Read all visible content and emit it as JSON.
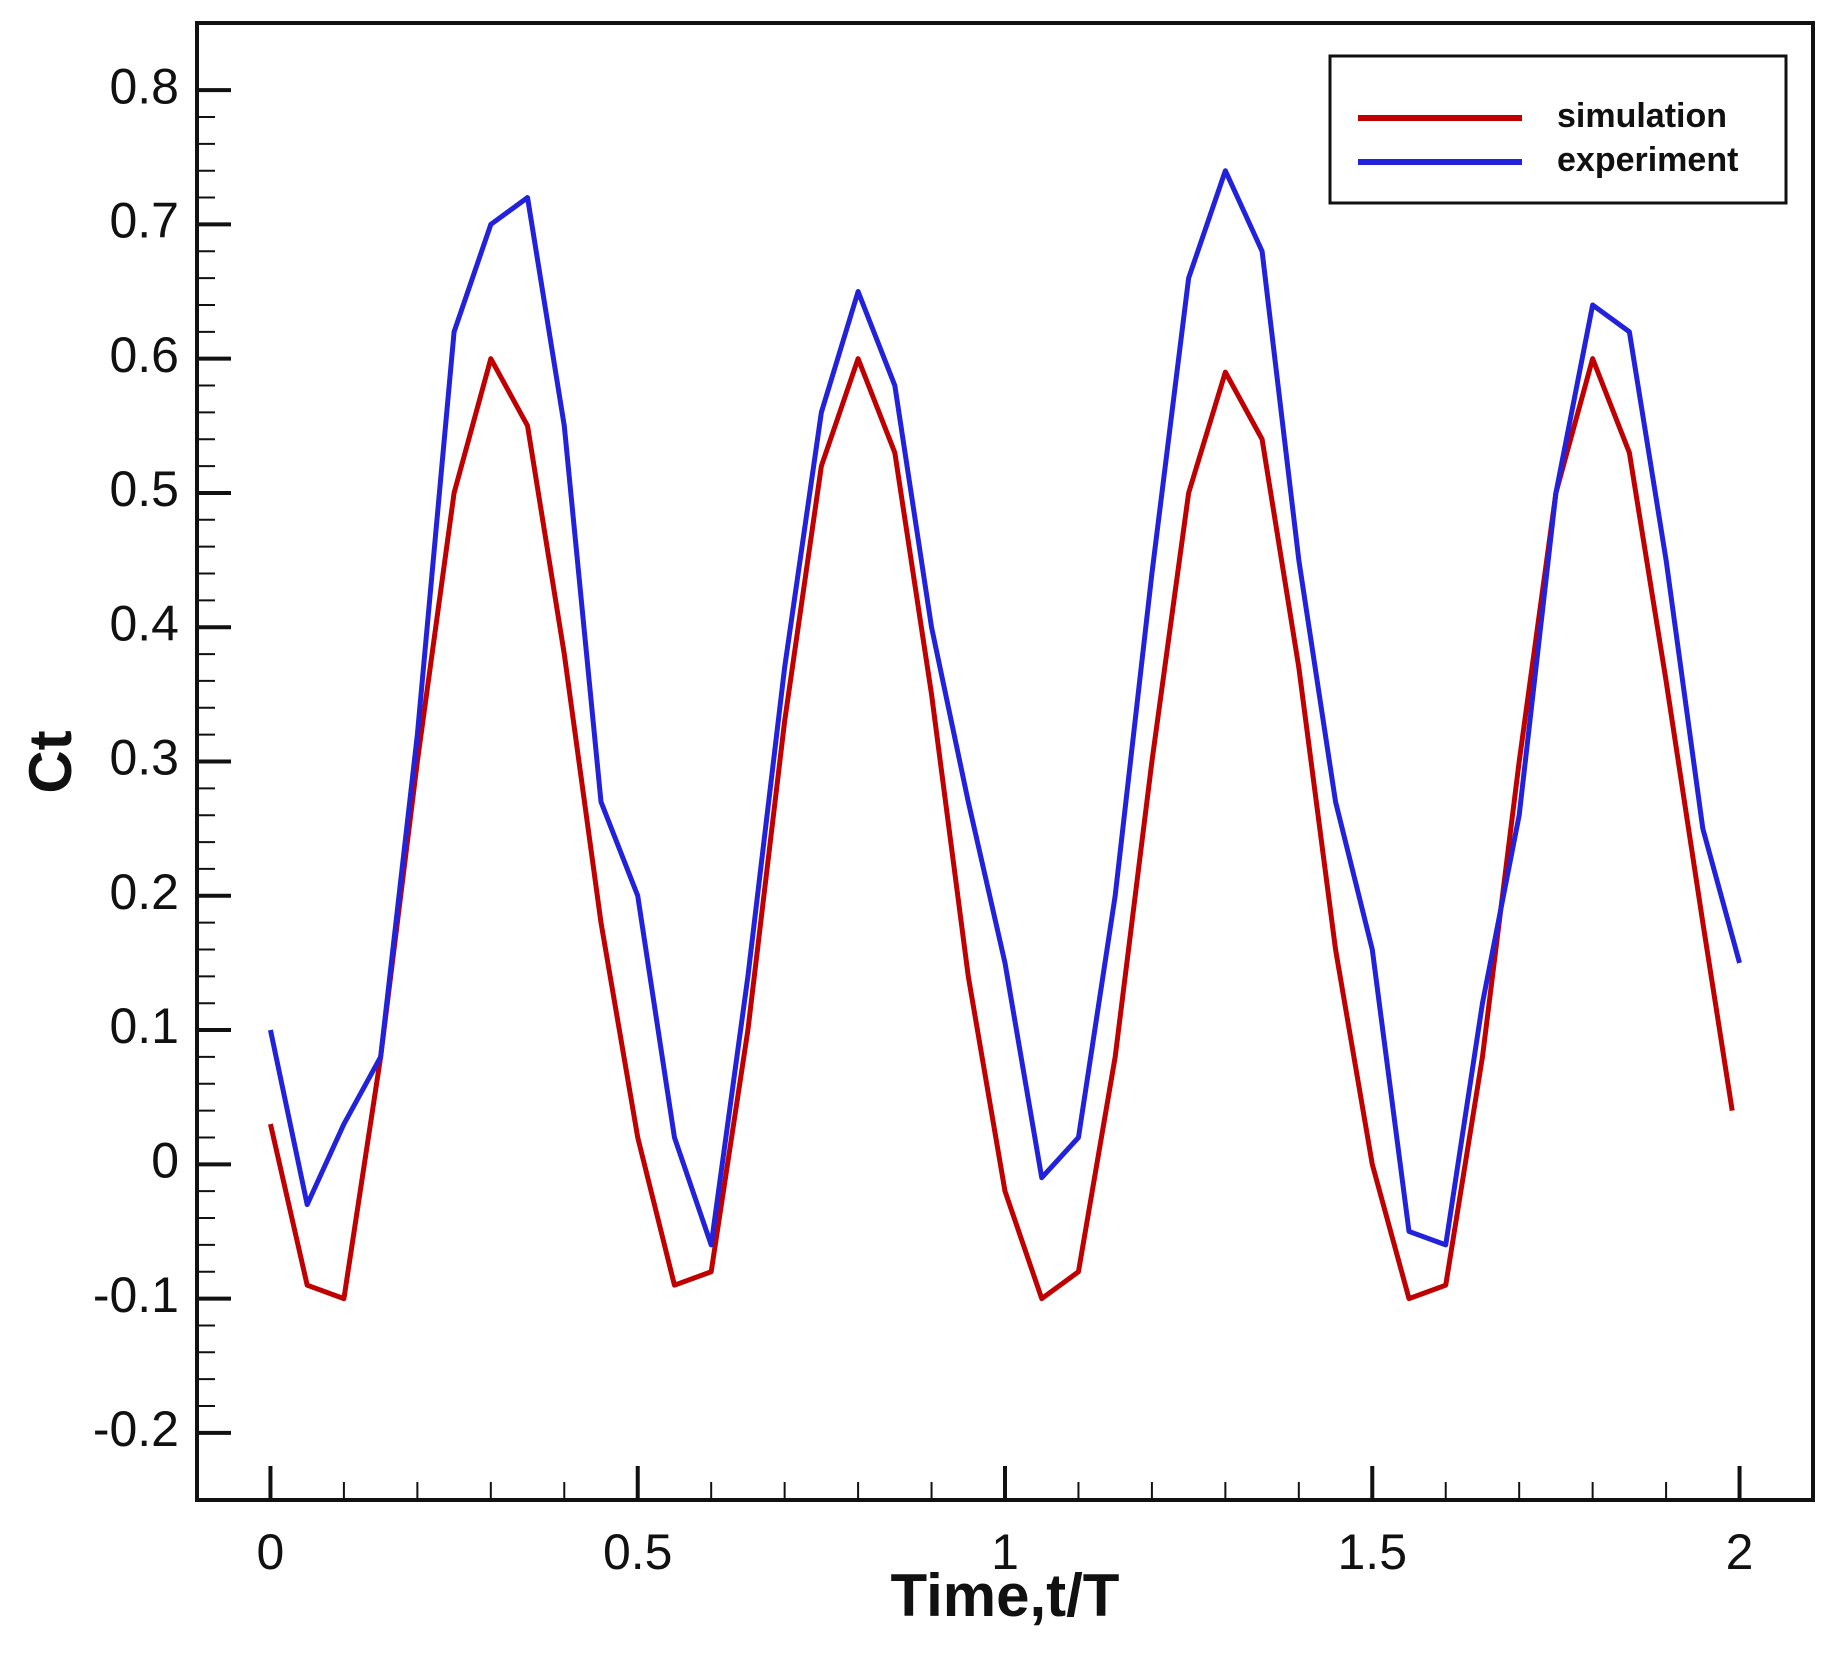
{
  "chart_data": {
    "type": "line",
    "xlabel": "Time,t/T",
    "ylabel": "Ct",
    "xlim": [
      -0.1,
      2.1
    ],
    "ylim": [
      -0.25,
      0.85
    ],
    "xticks": [
      0,
      0.5,
      1,
      1.5,
      2
    ],
    "yticks": [
      -0.2,
      -0.1,
      0,
      0.1,
      0.2,
      0.3,
      0.4,
      0.5,
      0.6,
      0.7,
      0.8
    ],
    "legend": "upper right",
    "series": [
      {
        "name": "simulation",
        "color": "#c00000",
        "x": [
          0,
          0.05,
          0.1,
          0.15,
          0.2,
          0.25,
          0.3,
          0.35,
          0.4,
          0.45,
          0.5,
          0.55,
          0.6,
          0.65,
          0.7,
          0.75,
          0.8,
          0.85,
          0.9,
          0.95,
          1,
          1.05,
          1.1,
          1.15,
          1.2,
          1.25,
          1.3,
          1.35,
          1.4,
          1.45,
          1.5,
          1.55,
          1.6,
          1.65,
          1.7,
          1.75,
          1.8,
          1.85,
          1.9,
          1.95,
          1.99
        ],
        "values": [
          0.03,
          -0.09,
          -0.1,
          0.08,
          0.3,
          0.5,
          0.6,
          0.55,
          0.38,
          0.18,
          0.02,
          -0.09,
          -0.08,
          0.1,
          0.33,
          0.52,
          0.6,
          0.53,
          0.35,
          0.14,
          -0.02,
          -0.1,
          -0.08,
          0.08,
          0.3,
          0.5,
          0.59,
          0.54,
          0.37,
          0.16,
          0,
          -0.1,
          -0.09,
          0.08,
          0.3,
          0.5,
          0.6,
          0.53,
          0.36,
          0.18,
          0.04
        ]
      },
      {
        "name": "experiment",
        "color": "#2222dd",
        "x": [
          0,
          0.05,
          0.1,
          0.15,
          0.2,
          0.25,
          0.3,
          0.35,
          0.4,
          0.45,
          0.5,
          0.55,
          0.6,
          0.65,
          0.7,
          0.75,
          0.8,
          0.85,
          0.9,
          0.95,
          1,
          1.05,
          1.1,
          1.15,
          1.2,
          1.25,
          1.3,
          1.35,
          1.4,
          1.45,
          1.5,
          1.55,
          1.6,
          1.65,
          1.7,
          1.75,
          1.8,
          1.85,
          1.9,
          1.95,
          2
        ],
        "values": [
          0.1,
          -0.03,
          0.03,
          0.08,
          0.32,
          0.62,
          0.7,
          0.72,
          0.55,
          0.27,
          0.2,
          0.02,
          -0.06,
          0.14,
          0.37,
          0.56,
          0.65,
          0.58,
          0.4,
          0.27,
          0.15,
          -0.01,
          0.02,
          0.2,
          0.44,
          0.66,
          0.74,
          0.68,
          0.45,
          0.27,
          0.16,
          -0.05,
          -0.06,
          0.12,
          0.26,
          0.5,
          0.64,
          0.62,
          0.45,
          0.25,
          0.15
        ]
      }
    ]
  }
}
